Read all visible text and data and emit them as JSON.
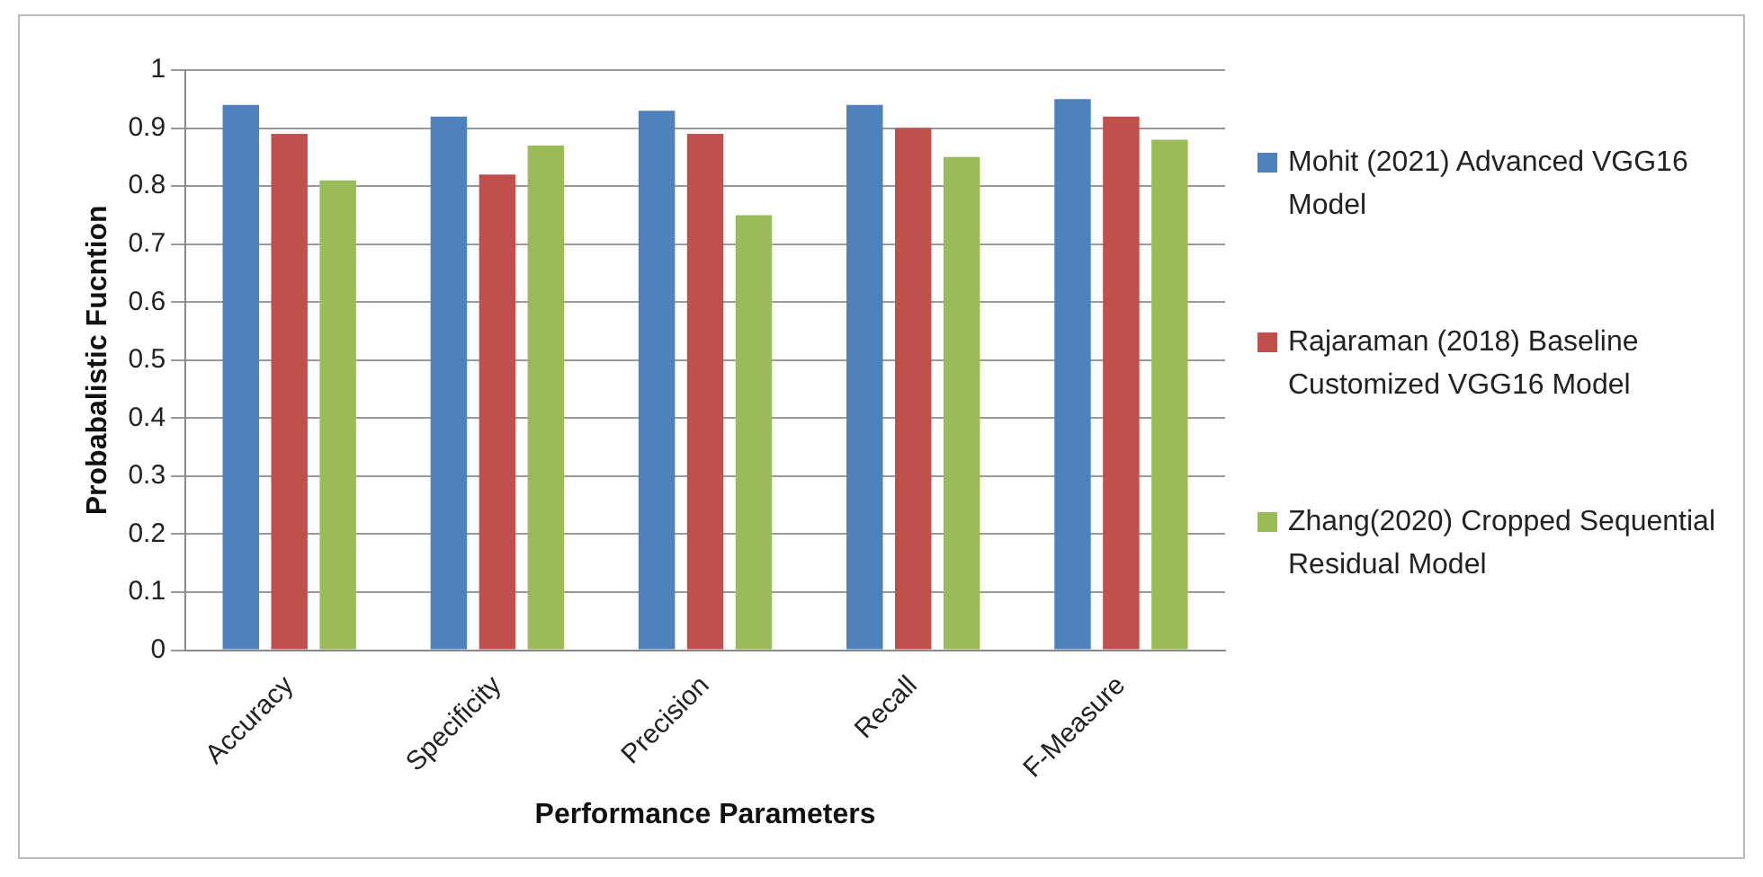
{
  "chart_data": {
    "type": "bar",
    "xlabel": "Performance Parameters",
    "ylabel": "Probabalistic Fucntion",
    "categories": [
      "Accuracy",
      "Specificity",
      "Precision",
      "Recall",
      "F-Measure"
    ],
    "series": [
      {
        "name": "Mohit (2021) Advanced VGG16 Model",
        "color": "#4f81bd",
        "values": [
          0.94,
          0.92,
          0.93,
          0.94,
          0.95
        ]
      },
      {
        "name": "Rajaraman (2018) Baseline Customized VGG16 Model",
        "color": "#c0504d",
        "values": [
          0.89,
          0.82,
          0.89,
          0.9,
          0.92
        ]
      },
      {
        "name": "Zhang(2020) Cropped Sequential Residual Model",
        "color": "#9bbb59",
        "values": [
          0.81,
          0.87,
          0.75,
          0.85,
          0.88
        ]
      }
    ],
    "ylim": [
      0,
      1
    ],
    "yticks": [
      0,
      0.1,
      0.2,
      0.3,
      0.4,
      0.5,
      0.6,
      0.7,
      0.8,
      0.9,
      1
    ],
    "grid": "y",
    "legend": "right"
  }
}
